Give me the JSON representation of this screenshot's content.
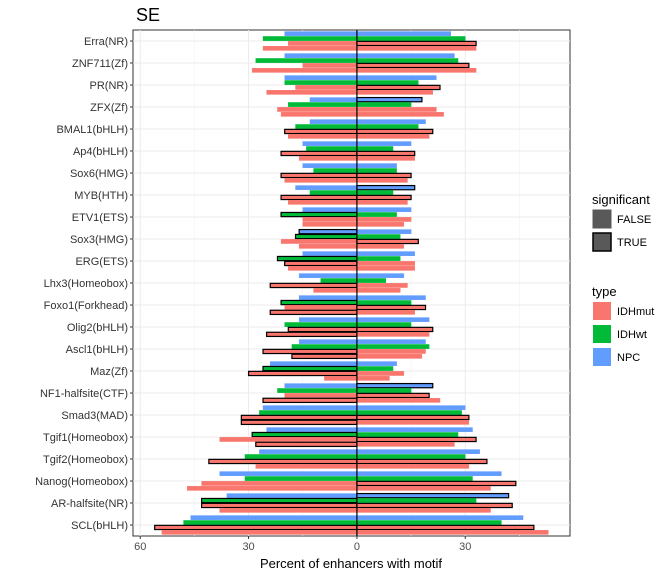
{
  "chart_data": {
    "type": "bar",
    "orientation": "horizontal",
    "layout": "mirrored (left of zero: one subset, right of zero: other subset)",
    "title": "SE",
    "xlabel": "Percent of enhancers with motif",
    "ylabel": "",
    "xlim": [
      -62,
      59
    ],
    "x_ticks": [
      -60,
      -30,
      0,
      30
    ],
    "x_tick_labels": [
      "60",
      "30",
      "0",
      "30"
    ],
    "grid": true,
    "legend_position": "right",
    "colors": {
      "IDHmut": "#F8766D",
      "IDHwt": "#00BA38",
      "NPC": "#619CFF"
    },
    "legend": {
      "significant": {
        "title": "significant",
        "entries": [
          "FALSE",
          "TRUE"
        ]
      },
      "type": {
        "title": "type",
        "entries": [
          "IDHmut",
          "IDHwt",
          "NPC"
        ]
      }
    },
    "bar_order_top_to_bottom": [
      "NPC",
      "IDHwt",
      "IDHmut",
      "IDHmut"
    ],
    "categories": [
      "Erra(NR)",
      "ZNF711(Zf)",
      "PR(NR)",
      "ZFX(Zf)",
      "BMAL1(bHLH)",
      "Ap4(bHLH)",
      "Sox6(HMG)",
      "MYB(HTH)",
      "ETV1(ETS)",
      "Sox3(HMG)",
      "ERG(ETS)",
      "Lhx3(Homeobox)",
      "Foxo1(Forkhead)",
      "Olig2(bHLH)",
      "Ascl1(bHLH)",
      "Maz(Zf)",
      "NF1-halfsite(CTF)",
      "Smad3(MAD)",
      "Tgif1(Homeobox)",
      "Tgif2(Homeobox)",
      "Nanog(Homeobox)",
      "AR-halfsite(NR)",
      "SCL(bHLH)"
    ],
    "series": [
      {
        "type": "NPC",
        "side": "left",
        "values": [
          -20,
          -20,
          -20,
          -13,
          -13,
          -15,
          -15,
          -17,
          -15,
          -16,
          -15,
          -16,
          -16,
          -16,
          -16,
          -24,
          -20,
          -26,
          -25,
          -27,
          -38,
          -36,
          -46
        ],
        "significant": [
          false,
          false,
          false,
          false,
          false,
          false,
          false,
          false,
          false,
          true,
          false,
          false,
          false,
          false,
          false,
          false,
          false,
          false,
          false,
          false,
          false,
          false,
          false
        ]
      },
      {
        "type": "IDHwt",
        "side": "left",
        "values": [
          -26,
          -28,
          -20,
          -19,
          -17,
          -14,
          -12,
          -13,
          -21,
          -17,
          -22,
          -10,
          -21,
          -20,
          -18,
          -26,
          -22,
          -27,
          -29,
          -31,
          -31,
          -43,
          -48
        ],
        "significant": [
          false,
          false,
          false,
          false,
          false,
          false,
          false,
          false,
          true,
          true,
          true,
          false,
          true,
          false,
          false,
          true,
          false,
          false,
          true,
          false,
          false,
          true,
          false
        ]
      },
      {
        "type": "IDHmut",
        "side": "left",
        "values": [
          -19,
          -15,
          -17,
          -22,
          -20,
          -21,
          -21,
          -21,
          -15,
          -21,
          -20,
          -24,
          -20,
          -19,
          -26,
          -30,
          -20,
          -32,
          -38,
          -41,
          -43,
          -43,
          -56
        ],
        "significant": [
          false,
          false,
          false,
          false,
          true,
          true,
          true,
          true,
          false,
          false,
          true,
          true,
          false,
          true,
          true,
          true,
          false,
          true,
          false,
          true,
          false,
          true,
          true
        ]
      },
      {
        "type": "IDHmut",
        "side": "left",
        "values": [
          -26,
          -29,
          -25,
          -21,
          -19,
          -16,
          -20,
          -19,
          -15,
          -16,
          -19,
          -12,
          -24,
          -25,
          -18,
          -9,
          -26,
          -32,
          -28,
          -28,
          -47,
          -38,
          -54
        ],
        "significant": [
          false,
          false,
          false,
          false,
          false,
          false,
          false,
          false,
          false,
          false,
          false,
          false,
          true,
          true,
          true,
          false,
          true,
          true,
          true,
          false,
          false,
          false,
          false
        ]
      },
      {
        "type": "NPC",
        "side": "right",
        "values": [
          26,
          27,
          22,
          18,
          19,
          15,
          11,
          16,
          15,
          15,
          16,
          13,
          19,
          20,
          19,
          11,
          21,
          30,
          32,
          34,
          40,
          42,
          46
        ],
        "significant": [
          false,
          false,
          false,
          true,
          false,
          false,
          false,
          true,
          false,
          false,
          false,
          false,
          false,
          false,
          false,
          false,
          true,
          false,
          false,
          false,
          false,
          true,
          false
        ]
      },
      {
        "type": "IDHwt",
        "side": "right",
        "values": [
          30,
          28,
          17,
          15,
          17,
          10,
          11,
          10,
          11,
          12,
          12,
          8,
          15,
          15,
          20,
          10,
          15,
          29,
          28,
          30,
          32,
          33,
          40
        ],
        "significant": [
          false,
          false,
          false,
          false,
          false,
          false,
          false,
          false,
          false,
          false,
          false,
          false,
          false,
          false,
          false,
          false,
          false,
          false,
          false,
          false,
          false,
          false,
          false
        ]
      },
      {
        "type": "IDHmut",
        "side": "right",
        "values": [
          33,
          31,
          23,
          22,
          21,
          16,
          15,
          15,
          15,
          17,
          16,
          14,
          19,
          21,
          19,
          13,
          20,
          31,
          33,
          36,
          44,
          43,
          49
        ],
        "significant": [
          true,
          true,
          true,
          false,
          true,
          true,
          true,
          true,
          false,
          true,
          false,
          false,
          true,
          true,
          false,
          false,
          true,
          true,
          true,
          true,
          true,
          true,
          true
        ]
      },
      {
        "type": "IDHmut",
        "side": "right",
        "values": [
          33,
          33,
          21,
          24,
          20,
          16,
          14,
          14,
          13,
          13,
          16,
          12,
          16,
          20,
          18,
          9,
          23,
          31,
          27,
          31,
          37,
          37,
          53
        ],
        "significant": [
          false,
          false,
          false,
          false,
          false,
          false,
          false,
          false,
          false,
          false,
          false,
          false,
          false,
          false,
          false,
          false,
          false,
          false,
          false,
          false,
          false,
          false,
          false
        ]
      }
    ]
  }
}
